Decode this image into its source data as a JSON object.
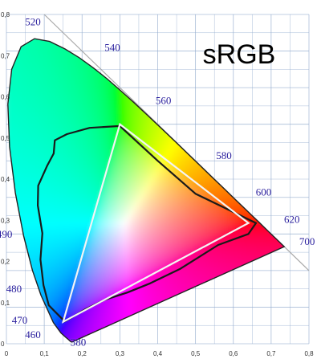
{
  "chart_data": {
    "type": "scatter",
    "title": "sRGB",
    "xlim": [
      0,
      0.8
    ],
    "ylim": [
      0,
      0.9
    ],
    "x_ticks": [
      "0",
      "0,1",
      "0,2",
      "0,3",
      "0,4",
      "0,5",
      "0,6",
      "0,7",
      "0,8"
    ],
    "y_ticks": [
      "0",
      "0,1",
      "0,2",
      "0,3",
      "0,4",
      "0,5",
      "0,6",
      "0,7",
      "0,8"
    ],
    "grid": true,
    "gamut_triangle": {
      "name": "sRGB",
      "color": "#f4f4f4",
      "points": [
        [
          0.64,
          0.33
        ],
        [
          0.3,
          0.6
        ],
        [
          0.15,
          0.06
        ]
      ]
    },
    "outline_points": [
      [
        0.154,
        0.061
      ],
      [
        0.112,
        0.105
      ],
      [
        0.098,
        0.16
      ],
      [
        0.09,
        0.23
      ],
      [
        0.095,
        0.302
      ],
      [
        0.083,
        0.378
      ],
      [
        0.084,
        0.432
      ],
      [
        0.108,
        0.487
      ],
      [
        0.125,
        0.52
      ],
      [
        0.128,
        0.556
      ],
      [
        0.16,
        0.573
      ],
      [
        0.22,
        0.59
      ],
      [
        0.3,
        0.595
      ],
      [
        0.4,
        0.5
      ],
      [
        0.5,
        0.41
      ],
      [
        0.6,
        0.36
      ],
      [
        0.66,
        0.33
      ],
      [
        0.64,
        0.3
      ],
      [
        0.56,
        0.27
      ],
      [
        0.46,
        0.205
      ],
      [
        0.38,
        0.165
      ],
      [
        0.32,
        0.14
      ],
      [
        0.26,
        0.12
      ],
      [
        0.21,
        0.095
      ],
      [
        0.17,
        0.07
      ]
    ],
    "locus_points": [
      [
        0.1741,
        0.005
      ],
      [
        0.1738,
        0.0049
      ],
      [
        0.1733,
        0.0048
      ],
      [
        0.1726,
        0.0048
      ],
      [
        0.1714,
        0.0051
      ],
      [
        0.1689,
        0.0069
      ],
      [
        0.1644,
        0.0109
      ],
      [
        0.1566,
        0.0177
      ],
      [
        0.144,
        0.0297
      ],
      [
        0.1241,
        0.0578
      ],
      [
        0.0913,
        0.1327
      ],
      [
        0.0687,
        0.2007
      ],
      [
        0.0454,
        0.295
      ],
      [
        0.0235,
        0.4127
      ],
      [
        0.0082,
        0.5384
      ],
      [
        0.0039,
        0.6548
      ],
      [
        0.0139,
        0.7502
      ],
      [
        0.0389,
        0.812
      ],
      [
        0.0743,
        0.8338
      ],
      [
        0.1142,
        0.8262
      ],
      [
        0.1547,
        0.8059
      ],
      [
        0.1929,
        0.7816
      ],
      [
        0.2296,
        0.7543
      ],
      [
        0.2658,
        0.7243
      ],
      [
        0.3016,
        0.6923
      ],
      [
        0.3373,
        0.6589
      ],
      [
        0.3731,
        0.6245
      ],
      [
        0.4087,
        0.5896
      ],
      [
        0.4441,
        0.5547
      ],
      [
        0.4788,
        0.5202
      ],
      [
        0.5125,
        0.4866
      ],
      [
        0.5448,
        0.4544
      ],
      [
        0.5752,
        0.4242
      ],
      [
        0.6029,
        0.3965
      ],
      [
        0.627,
        0.3725
      ],
      [
        0.6482,
        0.3514
      ],
      [
        0.6658,
        0.334
      ],
      [
        0.6801,
        0.3197
      ],
      [
        0.6915,
        0.3083
      ],
      [
        0.7006,
        0.2993
      ],
      [
        0.7079,
        0.292
      ],
      [
        0.714,
        0.2859
      ],
      [
        0.719,
        0.2809
      ],
      [
        0.723,
        0.277
      ],
      [
        0.726,
        0.274
      ],
      [
        0.7283,
        0.2717
      ],
      [
        0.73,
        0.27
      ],
      [
        0.7311,
        0.2689
      ],
      [
        0.732,
        0.268
      ],
      [
        0.7327,
        0.2673
      ],
      [
        0.7334,
        0.2666
      ],
      [
        0.734,
        0.266
      ],
      [
        0.7344,
        0.2656
      ],
      [
        0.7346,
        0.2654
      ],
      [
        0.7347,
        0.2653
      ]
    ],
    "wavelength_labels": [
      {
        "label": "520",
        "x": 0.07,
        "y": 0.87
      },
      {
        "label": "540",
        "x": 0.28,
        "y": 0.8
      },
      {
        "label": "560",
        "x": 0.415,
        "y": 0.655
      },
      {
        "label": "580",
        "x": 0.575,
        "y": 0.505
      },
      {
        "label": "600",
        "x": 0.68,
        "y": 0.405
      },
      {
        "label": "620",
        "x": 0.755,
        "y": 0.33
      },
      {
        "label": "700",
        "x": 0.795,
        "y": 0.27
      },
      {
        "label": "490",
        "x": -0.005,
        "y": 0.29
      },
      {
        "label": "480",
        "x": 0.02,
        "y": 0.14
      },
      {
        "label": "470",
        "x": 0.035,
        "y": 0.055
      },
      {
        "label": "460",
        "x": 0.07,
        "y": 0.015
      },
      {
        "label": "380",
        "x": 0.19,
        "y": -0.005
      }
    ],
    "colors": {
      "grid": "#8ea8cc",
      "outline": "#1a1a1a",
      "locus_edge": "#222222",
      "diagonal": "#aaaaaa",
      "wavelength_label": "#2a1f9e"
    }
  }
}
